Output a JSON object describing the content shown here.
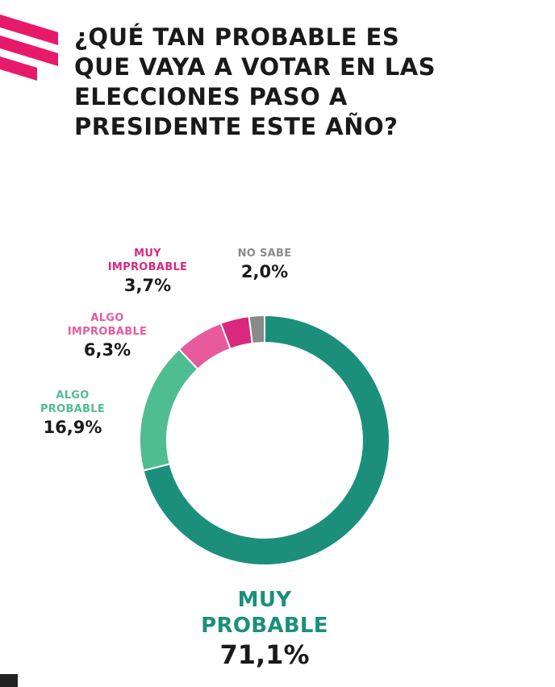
{
  "title_lines": [
    "¿QUÉ TAN PROBABLE ES",
    "QUE VAYA A VOTAR EN LAS",
    "ELECCIONES PASO A",
    "PRESIDENTE ESTE AÑO?"
  ],
  "colors": {
    "muy_probable": "#1b8f7c",
    "algo_probable": "#4fbd91",
    "algo_improbable": "#e85a9e",
    "muy_improbable": "#d9287d",
    "no_sabe": "#8a8a8a",
    "brand": "#e8196b"
  },
  "chart_data": {
    "type": "pie",
    "title": "¿QUÉ TAN PROBABLE ES QUE VAYA A VOTAR EN LAS ELECCIONES PASO A PRESIDENTE ESTE AÑO?",
    "slices": [
      {
        "label_lines": [
          "MUY",
          "PROBABLE"
        ],
        "label": "MUY PROBABLE",
        "value": 71.1,
        "display": "71,1%"
      },
      {
        "label_lines": [
          "ALGO",
          "PROBABLE"
        ],
        "label": "ALGO PROBABLE",
        "value": 16.9,
        "display": "16,9%"
      },
      {
        "label_lines": [
          "ALGO",
          "IMPROBABLE"
        ],
        "label": "ALGO IMPROBABLE",
        "value": 6.3,
        "display": "6,3%"
      },
      {
        "label_lines": [
          "MUY",
          "IMPROBABLE"
        ],
        "label": "MUY IMPROBABLE",
        "value": 3.7,
        "display": "3,7%"
      },
      {
        "label_lines": [
          "NO SABE"
        ],
        "label": "NO SABE",
        "value": 2.0,
        "display": "2,0%"
      }
    ],
    "donut": true
  }
}
